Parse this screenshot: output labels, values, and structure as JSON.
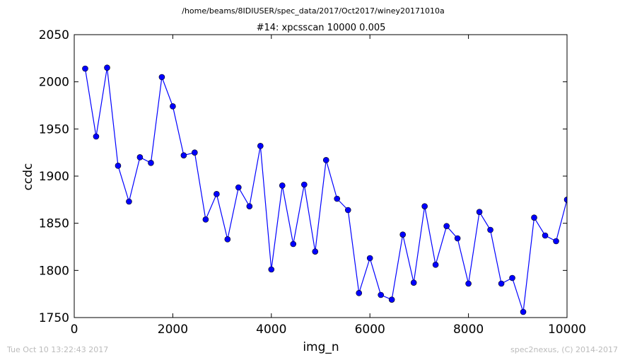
{
  "chart_data": {
    "type": "line",
    "suptitle": "/home/beams/8IDIUSER/spec_data/2017/Oct2017/winey20171010a",
    "title": "#14: xpcsscan 10000 0.005",
    "xlabel": "img_n",
    "ylabel": "ccdc",
    "xlim": [
      0,
      10000
    ],
    "ylim": [
      1750,
      2050
    ],
    "xticks": [
      "0",
      "2000",
      "4000",
      "6000",
      "8000",
      "10000"
    ],
    "yticks": [
      "1750",
      "1800",
      "1850",
      "1900",
      "1950",
      "2000",
      "2050"
    ],
    "grid": false,
    "series": [
      {
        "color": "#0000ff",
        "marker": "circle",
        "x": [
          222,
          444,
          667,
          889,
          1111,
          1333,
          1556,
          1778,
          2000,
          2222,
          2444,
          2667,
          2889,
          3111,
          3333,
          3556,
          3778,
          4000,
          4222,
          4444,
          4667,
          4889,
          5111,
          5333,
          5556,
          5778,
          6000,
          6222,
          6444,
          6667,
          6889,
          7111,
          7333,
          7556,
          7778,
          8000,
          8222,
          8444,
          8667,
          8889,
          9111,
          9333,
          9556,
          9778,
          10000
        ],
        "y": [
          2014,
          1942,
          2015,
          1911,
          1873,
          1920,
          1914,
          2005,
          1974,
          1922,
          1925,
          1854,
          1881,
          1833,
          1888,
          1868,
          1932,
          1801,
          1890,
          1828,
          1891,
          1820,
          1917,
          1876,
          1864,
          1776,
          1813,
          1774,
          1769,
          1838,
          1787,
          1868,
          1806,
          1847,
          1834,
          1786,
          1862,
          1843,
          1786,
          1792,
          1756,
          1856,
          1837,
          1831,
          1875
        ]
      }
    ]
  },
  "footer": {
    "timestamp": "Tue Oct 10 13:22:43 2017",
    "credit": "spec2nexus, (C) 2014-2017"
  }
}
